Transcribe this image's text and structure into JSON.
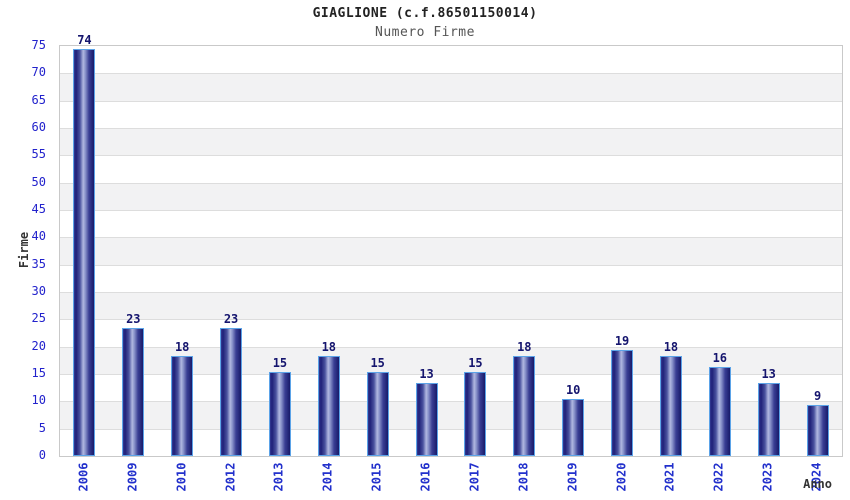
{
  "chart_data": {
    "type": "bar",
    "title": "GIAGLIONE (c.f.86501150014)",
    "subtitle": "Numero Firme",
    "xlabel": "Anno",
    "ylabel": "Firme",
    "categories": [
      "2006",
      "2009",
      "2010",
      "2012",
      "2013",
      "2014",
      "2015",
      "2016",
      "2017",
      "2018",
      "2019",
      "2020",
      "2021",
      "2022",
      "2023",
      "2024"
    ],
    "values": [
      74,
      23,
      18,
      23,
      15,
      18,
      15,
      13,
      15,
      18,
      10,
      19,
      18,
      16,
      13,
      9
    ],
    "ylim": [
      0,
      75
    ],
    "ytick_step": 5,
    "grid": true,
    "legend": "none",
    "band_pattern": "alternating horizontal 5-unit bands, white and light gray, starting white below 75"
  },
  "colors": {
    "bar_border": "#5ba3e8",
    "bar_gradient_dark": "#181a6a",
    "bar_gradient_light": "#b0b7e0",
    "value_label": "#15156e",
    "axis_tick_label": "#2222cc",
    "year_label": "#2230cc",
    "title": "#222222",
    "subtitle": "#555555",
    "axis_title": "#333333",
    "band_gray": "#f2f2f3",
    "gridline": "#dddddd",
    "plot_border": "#c9c9c9",
    "background": "#ffffff"
  }
}
